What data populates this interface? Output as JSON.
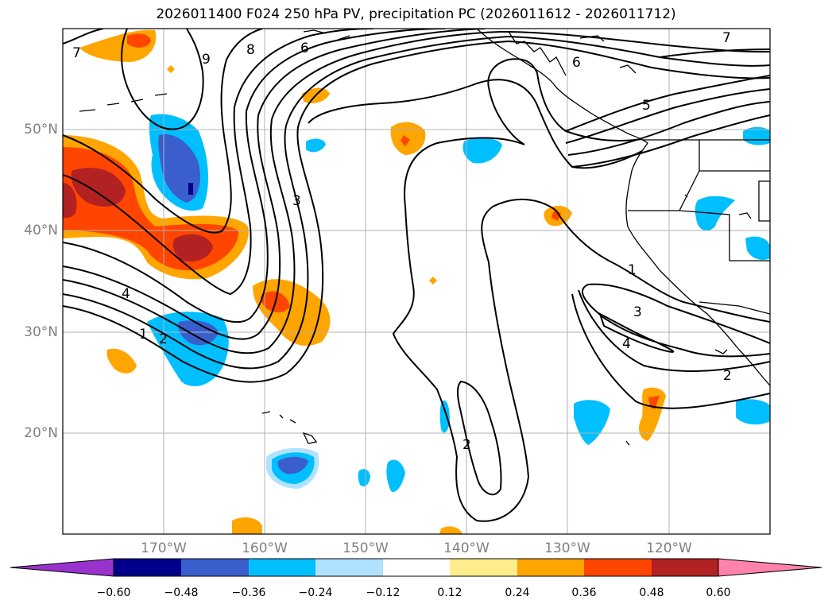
{
  "title": "2026011400 F024 250 hPa PV, precipitation PC (2026011612 - 2026011712)",
  "axes": {
    "lat_ticks": [
      {
        "label": "50°N",
        "lat": 50
      },
      {
        "label": "40°N",
        "lat": 40
      },
      {
        "label": "30°N",
        "lat": 30
      },
      {
        "label": "20°N",
        "lat": 20
      }
    ],
    "lon_ticks": [
      {
        "label": "170°W",
        "lon": -170
      },
      {
        "label": "160°W",
        "lon": -160
      },
      {
        "label": "150°W",
        "lon": -150
      },
      {
        "label": "140°W",
        "lon": -140
      },
      {
        "label": "130°W",
        "lon": -130
      },
      {
        "label": "120°W",
        "lon": -120
      }
    ],
    "lon_range": [
      -180,
      -110
    ],
    "lat_range": [
      10,
      60
    ]
  },
  "pv_contour_labels": [
    "9",
    "8",
    "6",
    "7",
    "7",
    "6",
    "5",
    "3",
    "4",
    "2",
    "1",
    "1",
    "3",
    "4",
    "2",
    "2"
  ],
  "colorbar": {
    "ticks": [
      "−0.60",
      "−0.48",
      "−0.36",
      "−0.24",
      "−0.12",
      "0.12",
      "0.24",
      "0.36",
      "0.48",
      "0.60"
    ],
    "colors": [
      "#9932cc",
      "#00008b",
      "#3a5fcd",
      "#00bfff",
      "#b0e2ff",
      "#ffffff",
      "#ffec8b",
      "#ffa500",
      "#ff4500",
      "#b22222",
      "#ff82ab"
    ]
  }
}
